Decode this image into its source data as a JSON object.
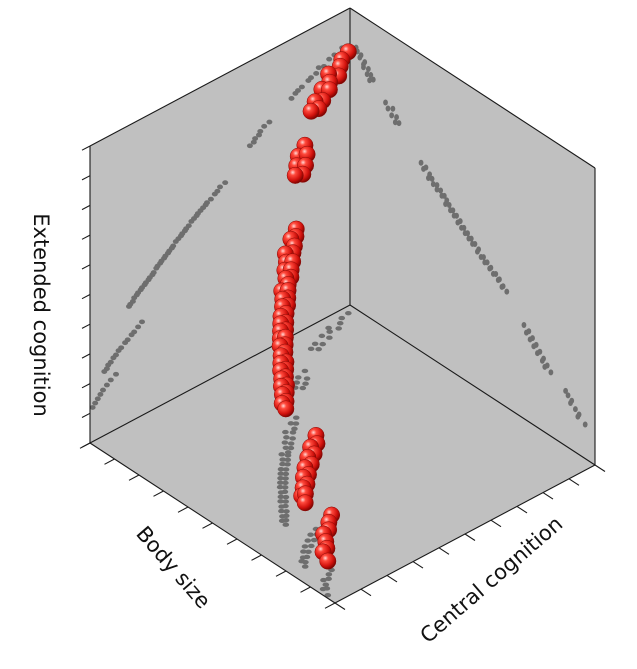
{
  "chart_data": {
    "type": "scatter",
    "projection": "3d",
    "title": "",
    "axes": {
      "x": {
        "label": "Body size",
        "range": [
          0,
          10
        ],
        "ticks": 10,
        "tick_labels": false
      },
      "y": {
        "label": "Central cognition",
        "range": [
          0,
          10
        ],
        "ticks": 10,
        "tick_labels": false
      },
      "z": {
        "label": "Extended cognition",
        "range": [
          0,
          10
        ],
        "ticks": 10,
        "tick_labels": false
      }
    },
    "grid": false,
    "legend": "none",
    "wall_color": "#c0c0c0",
    "point_color": "#e8201c",
    "projection_color": "#6e6e6e",
    "series": [
      {
        "points": [
          [
            0.3,
            0.25,
            8.8
          ],
          [
            0.6,
            0.3,
            8.7
          ],
          [
            0.8,
            0.45,
            8.65
          ],
          [
            1.0,
            0.6,
            8.5
          ],
          [
            1.2,
            0.4,
            8.55
          ],
          [
            1.3,
            0.55,
            8.4
          ],
          [
            1.5,
            0.75,
            8.35
          ],
          [
            1.6,
            0.55,
            8.3
          ],
          [
            1.85,
            0.85,
            8.2
          ],
          [
            2.0,
            0.7,
            8.15
          ],
          [
            2.1,
            0.95,
            8.1
          ],
          [
            2.25,
            0.8,
            8.0
          ],
          [
            3.1,
            1.45,
            7.6
          ],
          [
            3.3,
            1.75,
            7.55
          ],
          [
            3.45,
            1.55,
            7.45
          ],
          [
            3.5,
            1.9,
            7.35
          ],
          [
            3.65,
            1.7,
            7.3
          ],
          [
            3.7,
            2.0,
            7.2
          ],
          [
            3.85,
            1.85,
            7.15
          ],
          [
            4.8,
            2.9,
            6.35
          ],
          [
            5.0,
            3.1,
            6.3
          ],
          [
            5.1,
            3.0,
            6.2
          ],
          [
            5.2,
            3.25,
            6.15
          ],
          [
            5.35,
            3.35,
            6.05
          ],
          [
            5.5,
            3.2,
            6.0
          ],
          [
            5.55,
            3.55,
            5.95
          ],
          [
            5.65,
            3.4,
            5.9
          ],
          [
            5.75,
            3.7,
            5.85
          ],
          [
            5.85,
            3.55,
            5.8
          ],
          [
            5.9,
            3.85,
            5.75
          ],
          [
            6.0,
            3.75,
            5.7
          ],
          [
            6.1,
            3.95,
            5.65
          ],
          [
            6.2,
            4.05,
            5.55
          ],
          [
            6.3,
            3.9,
            5.5
          ],
          [
            6.35,
            4.2,
            5.45
          ],
          [
            6.45,
            4.1,
            5.4
          ],
          [
            6.5,
            4.35,
            5.35
          ],
          [
            6.6,
            4.25,
            5.3
          ],
          [
            6.7,
            4.5,
            5.25
          ],
          [
            6.8,
            4.4,
            5.15
          ],
          [
            6.85,
            4.65,
            5.1
          ],
          [
            6.95,
            4.55,
            5.05
          ],
          [
            7.0,
            4.8,
            5.0
          ],
          [
            7.1,
            4.7,
            4.95
          ],
          [
            7.15,
            4.95,
            4.9
          ],
          [
            7.25,
            4.85,
            4.85
          ],
          [
            7.3,
            5.1,
            4.8
          ],
          [
            7.4,
            5.0,
            4.75
          ],
          [
            7.45,
            5.25,
            4.7
          ],
          [
            7.55,
            5.2,
            4.6
          ],
          [
            7.6,
            5.45,
            4.55
          ],
          [
            7.7,
            5.35,
            4.5
          ],
          [
            7.75,
            5.6,
            4.45
          ],
          [
            7.85,
            5.5,
            4.4
          ],
          [
            7.9,
            5.75,
            4.35
          ],
          [
            8.0,
            5.7,
            4.3
          ],
          [
            8.05,
            5.95,
            4.25
          ],
          [
            8.15,
            5.85,
            4.2
          ],
          [
            8.2,
            6.1,
            4.15
          ],
          [
            8.3,
            6.05,
            4.1
          ],
          [
            8.35,
            6.25,
            4.0
          ],
          [
            8.45,
            6.2,
            3.95
          ],
          [
            8.5,
            6.4,
            3.9
          ],
          [
            8.0,
            7.1,
            3.15
          ],
          [
            8.15,
            7.3,
            3.05
          ],
          [
            8.3,
            7.2,
            2.95
          ],
          [
            8.4,
            7.45,
            2.9
          ],
          [
            8.55,
            7.35,
            2.8
          ],
          [
            8.65,
            7.6,
            2.75
          ],
          [
            8.8,
            7.5,
            2.65
          ],
          [
            8.9,
            7.75,
            2.6
          ],
          [
            9.0,
            7.65,
            2.5
          ],
          [
            9.1,
            7.9,
            2.45
          ],
          [
            9.2,
            7.85,
            2.35
          ],
          [
            9.3,
            8.05,
            2.3
          ],
          [
            9.35,
            7.95,
            2.2
          ],
          [
            9.45,
            8.2,
            2.15
          ],
          [
            9.0,
            8.8,
            1.85
          ],
          [
            9.2,
            8.9,
            1.75
          ],
          [
            9.35,
            9.05,
            1.65
          ],
          [
            9.5,
            9.0,
            1.55
          ],
          [
            9.6,
            9.2,
            1.45
          ],
          [
            9.7,
            9.35,
            1.35
          ],
          [
            9.8,
            9.3,
            1.25
          ],
          [
            9.9,
            9.6,
            1.15
          ]
        ]
      }
    ]
  }
}
